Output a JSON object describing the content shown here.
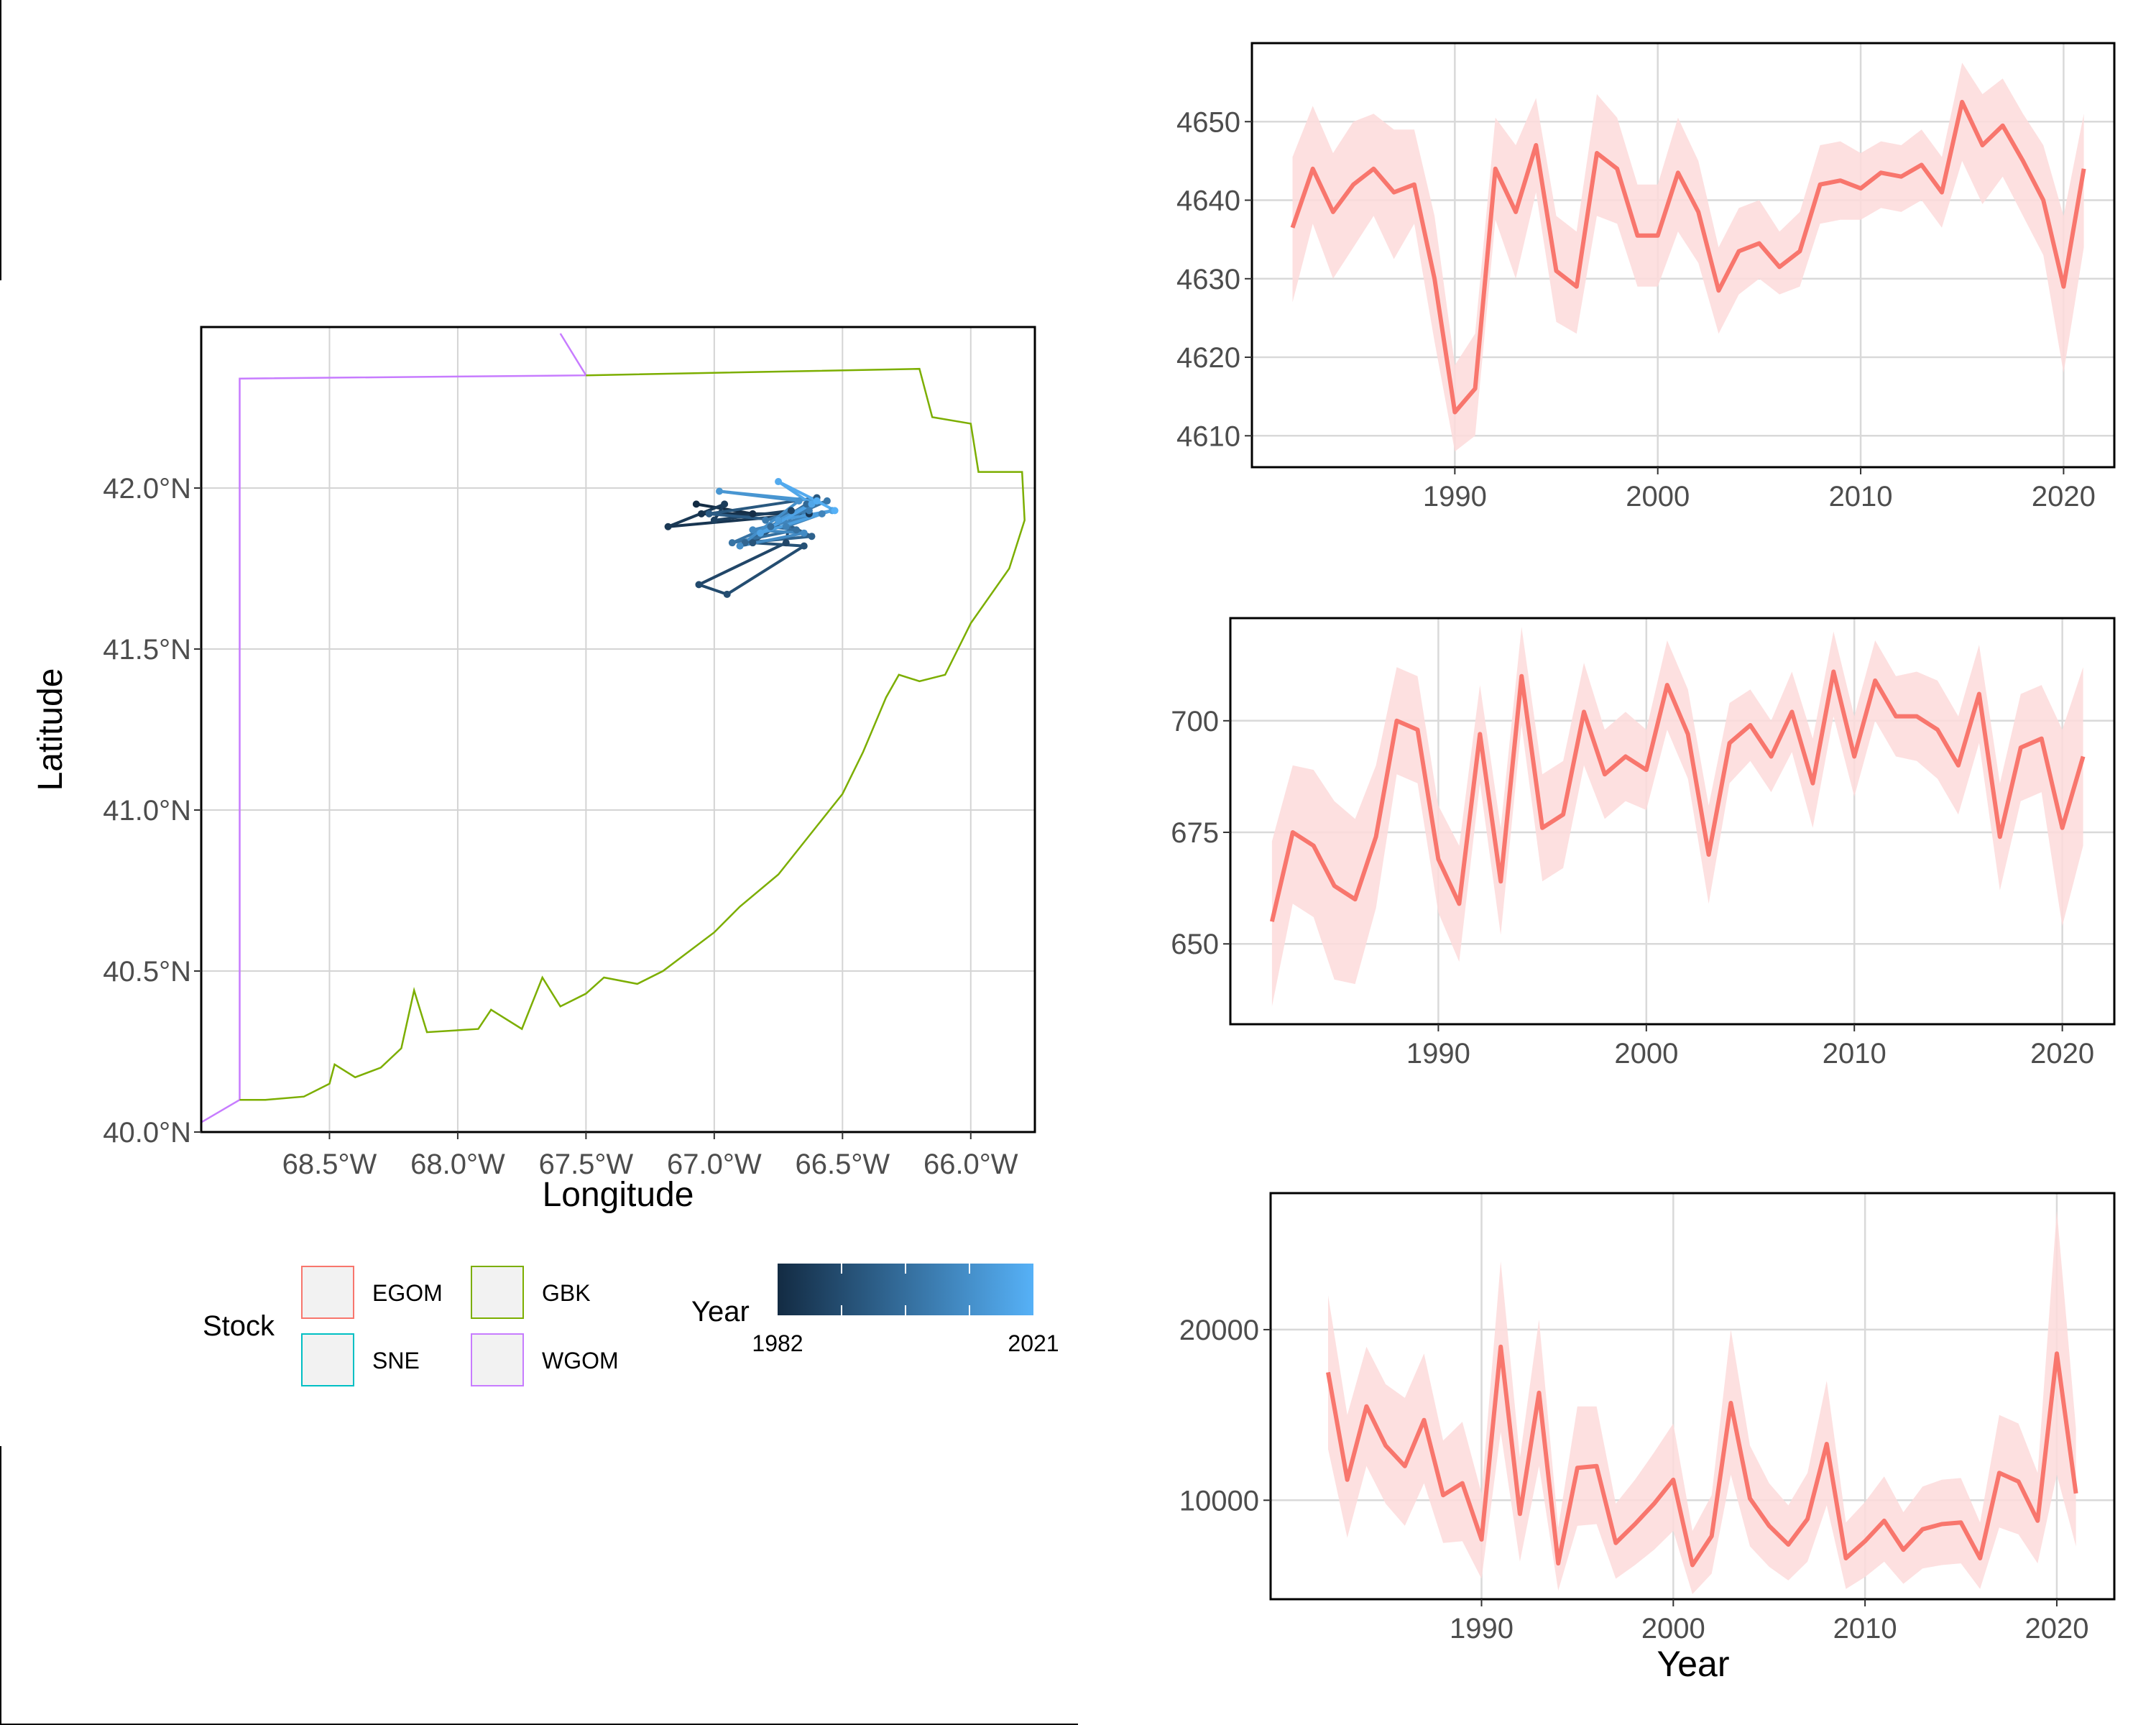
{
  "chart_data": [
    {
      "type": "map",
      "xlabel": "Longitude",
      "ylabel": "Latitude",
      "xlim": [
        -69.0,
        -65.75
      ],
      "ylim": [
        40.0,
        42.5
      ],
      "x_ticks": [
        {
          "value": -68.5,
          "label": "68.5°W"
        },
        {
          "value": -68.0,
          "label": "68.0°W"
        },
        {
          "value": -67.5,
          "label": "67.5°W"
        },
        {
          "value": -67.0,
          "label": "67.0°W"
        },
        {
          "value": -66.5,
          "label": "66.5°W"
        },
        {
          "value": -66.0,
          "label": "66.0°W"
        }
      ],
      "y_ticks": [
        {
          "value": 40.0,
          "label": "40.0°N"
        },
        {
          "value": 40.5,
          "label": "40.5°N"
        },
        {
          "value": 41.0,
          "label": "41.0°N"
        },
        {
          "value": 41.5,
          "label": "41.5°N"
        },
        {
          "value": 42.0,
          "label": "42.0°N"
        }
      ],
      "grid": true,
      "stock_legend": {
        "title": "Stock",
        "items": [
          {
            "label": "EGOM",
            "color": "#F8766D"
          },
          {
            "label": "GBK",
            "color": "#7CAE00"
          },
          {
            "label": "SNE",
            "color": "#00BFC4"
          },
          {
            "label": "WGOM",
            "color": "#C77CFF"
          }
        ]
      },
      "year_legend": {
        "title": "Year",
        "min_label": "1982",
        "max_label": "2021",
        "color_low": "#132B43",
        "color_high": "#56B1F7"
      },
      "stock_boundaries": [
        {
          "name": "WGOM",
          "color": "#C77CFF",
          "points": [
            [
              -69.0,
              40.03
            ],
            [
              -68.85,
              40.1
            ],
            [
              -68.85,
              42.34
            ],
            [
              -67.5,
              42.35
            ],
            [
              -67.6,
              42.48
            ]
          ]
        },
        {
          "name": "GBK",
          "color": "#7CAE00",
          "points": [
            [
              -68.85,
              40.1
            ],
            [
              -68.75,
              40.1
            ],
            [
              -68.6,
              40.11
            ],
            [
              -68.5,
              40.15
            ],
            [
              -68.48,
              40.21
            ],
            [
              -68.4,
              40.17
            ],
            [
              -68.3,
              40.2
            ],
            [
              -68.22,
              40.26
            ],
            [
              -68.17,
              40.44
            ],
            [
              -68.12,
              40.31
            ],
            [
              -67.92,
              40.32
            ],
            [
              -67.87,
              40.38
            ],
            [
              -67.75,
              40.32
            ],
            [
              -67.67,
              40.48
            ],
            [
              -67.6,
              40.39
            ],
            [
              -67.5,
              40.43
            ],
            [
              -67.43,
              40.48
            ],
            [
              -67.3,
              40.46
            ],
            [
              -67.2,
              40.5
            ],
            [
              -67.0,
              40.62
            ],
            [
              -66.9,
              40.7
            ],
            [
              -66.75,
              40.8
            ],
            [
              -66.6,
              40.95
            ],
            [
              -66.5,
              41.05
            ],
            [
              -66.42,
              41.18
            ],
            [
              -66.33,
              41.35
            ],
            [
              -66.28,
              41.42
            ],
            [
              -66.2,
              41.4
            ],
            [
              -66.1,
              41.42
            ],
            [
              -66.0,
              41.58
            ],
            [
              -65.85,
              41.75
            ],
            [
              -65.79,
              41.9
            ],
            [
              -65.8,
              42.05
            ],
            [
              -65.97,
              42.05
            ],
            [
              -66.0,
              42.2
            ],
            [
              -66.15,
              42.22
            ],
            [
              -66.2,
              42.37
            ],
            [
              -67.5,
              42.35
            ]
          ]
        }
      ],
      "track_points": [
        {
          "year": 1982,
          "lon": -67.07,
          "lat": 41.95
        },
        {
          "year": 1983,
          "lon": -66.85,
          "lat": 41.92
        },
        {
          "year": 1984,
          "lon": -67.05,
          "lat": 41.92
        },
        {
          "year": 1985,
          "lon": -66.63,
          "lat": 41.92
        },
        {
          "year": 1986,
          "lon": -67.18,
          "lat": 41.88
        },
        {
          "year": 1987,
          "lon": -66.96,
          "lat": 41.95
        },
        {
          "year": 1988,
          "lon": -67.0,
          "lat": 41.9
        },
        {
          "year": 1989,
          "lon": -66.7,
          "lat": 41.93
        },
        {
          "year": 1990,
          "lon": -66.72,
          "lat": 41.83
        },
        {
          "year": 1991,
          "lon": -67.06,
          "lat": 41.7
        },
        {
          "year": 1992,
          "lon": -66.95,
          "lat": 41.67
        },
        {
          "year": 1993,
          "lon": -66.65,
          "lat": 41.82
        },
        {
          "year": 1994,
          "lon": -66.85,
          "lat": 41.83
        },
        {
          "year": 1995,
          "lon": -66.6,
          "lat": 41.97
        },
        {
          "year": 1996,
          "lon": -67.02,
          "lat": 41.92
        },
        {
          "year": 1997,
          "lon": -66.75,
          "lat": 41.9
        },
        {
          "year": 1998,
          "lon": -66.62,
          "lat": 41.85
        },
        {
          "year": 1999,
          "lon": -66.88,
          "lat": 41.83
        },
        {
          "year": 2000,
          "lon": -66.64,
          "lat": 41.95
        },
        {
          "year": 2001,
          "lon": -66.78,
          "lat": 41.88
        },
        {
          "year": 2002,
          "lon": -66.68,
          "lat": 41.87
        },
        {
          "year": 2003,
          "lon": -66.93,
          "lat": 41.83
        },
        {
          "year": 2004,
          "lon": -66.56,
          "lat": 41.96
        },
        {
          "year": 2005,
          "lon": -66.8,
          "lat": 41.9
        },
        {
          "year": 2006,
          "lon": -66.63,
          "lat": 41.93
        },
        {
          "year": 2007,
          "lon": -66.72,
          "lat": 41.88
        },
        {
          "year": 2008,
          "lon": -66.58,
          "lat": 41.92
        },
        {
          "year": 2009,
          "lon": -66.85,
          "lat": 41.87
        },
        {
          "year": 2010,
          "lon": -66.65,
          "lat": 41.86
        },
        {
          "year": 2011,
          "lon": -66.9,
          "lat": 41.82
        },
        {
          "year": 2012,
          "lon": -66.67,
          "lat": 41.96
        },
        {
          "year": 2013,
          "lon": -66.98,
          "lat": 41.99
        },
        {
          "year": 2014,
          "lon": -66.6,
          "lat": 41.96
        },
        {
          "year": 2015,
          "lon": -66.75,
          "lat": 41.9
        },
        {
          "year": 2016,
          "lon": -66.54,
          "lat": 41.93
        },
        {
          "year": 2017,
          "lon": -66.82,
          "lat": 41.86
        },
        {
          "year": 2018,
          "lon": -66.62,
          "lat": 41.95
        },
        {
          "year": 2019,
          "lon": -66.75,
          "lat": 42.02
        },
        {
          "year": 2020,
          "lon": -66.6,
          "lat": 41.96
        },
        {
          "year": 2021,
          "lon": -66.53,
          "lat": 41.93
        }
      ]
    },
    {
      "type": "line",
      "xlabel": "",
      "ylabel": "",
      "xlim": [
        1980.0,
        2022.5
      ],
      "ylim": [
        4606.0,
        4660.0
      ],
      "x_ticks": [
        1990,
        2000,
        2010,
        2020
      ],
      "y_ticks": [
        4610,
        4620,
        4630,
        4640,
        4650
      ],
      "grid": true,
      "line_color": "#F8766D",
      "ribbon_color": "#FDDADA",
      "x": [
        1982,
        1983,
        1984,
        1985,
        1986,
        1987,
        1988,
        1989,
        1990,
        1991,
        1992,
        1993,
        1994,
        1995,
        1996,
        1997,
        1998,
        1999,
        2000,
        2001,
        2002,
        2003,
        2004,
        2005,
        2006,
        2007,
        2008,
        2009,
        2010,
        2011,
        2012,
        2013,
        2014,
        2015,
        2016,
        2017,
        2018,
        2019,
        2020,
        2021
      ],
      "y": [
        4636.5,
        4644.0,
        4638.5,
        4642.0,
        4644.0,
        4641.0,
        4642.0,
        4630.0,
        4613.0,
        4616.0,
        4644.0,
        4638.5,
        4647.0,
        4631.0,
        4629.0,
        4646.0,
        4644.0,
        4635.5,
        4635.5,
        4643.5,
        4638.5,
        4628.5,
        4633.5,
        4634.5,
        4631.5,
        4633.5,
        4642.0,
        4642.5,
        4641.5,
        4643.5,
        4643.0,
        4644.5,
        4641.0,
        4652.5,
        4647.0,
        4649.5,
        4645.0,
        4640.0,
        4629.0,
        4644.0
      ],
      "lower": [
        4627.0,
        4637.0,
        4630.0,
        4634.0,
        4638.0,
        4632.5,
        4637.0,
        4622.0,
        4608.0,
        4610.0,
        4637.5,
        4630.0,
        4641.0,
        4624.5,
        4623.0,
        4638.0,
        4637.0,
        4629.0,
        4629.0,
        4636.0,
        4632.0,
        4623.0,
        4628.0,
        4630.0,
        4628.0,
        4629.0,
        4637.0,
        4637.5,
        4637.5,
        4639.0,
        4638.5,
        4640.0,
        4636.5,
        4645.0,
        4639.5,
        4643.0,
        4638.0,
        4633.0,
        4618.0,
        4634.0
      ],
      "upper": [
        4645.5,
        4652.0,
        4646.0,
        4650.0,
        4651.0,
        4649.0,
        4649.0,
        4638.0,
        4619.0,
        4623.0,
        4650.5,
        4647.0,
        4653.0,
        4638.0,
        4636.0,
        4653.5,
        4650.5,
        4642.0,
        4642.0,
        4650.5,
        4645.0,
        4634.0,
        4639.0,
        4640.0,
        4636.0,
        4638.5,
        4647.0,
        4647.5,
        4646.0,
        4647.5,
        4647.0,
        4649.0,
        4645.5,
        4657.5,
        4653.5,
        4655.5,
        4651.0,
        4647.0,
        4638.0,
        4651.0
      ]
    },
    {
      "type": "line",
      "xlabel": "",
      "ylabel": "",
      "xlim": [
        1980.0,
        2022.5
      ],
      "ylim": [
        632.0,
        723.0
      ],
      "x_ticks": [
        1990,
        2000,
        2010,
        2020
      ],
      "y_ticks": [
        650,
        675,
        700
      ],
      "grid": true,
      "line_color": "#F8766D",
      "ribbon_color": "#FDDADA",
      "x": [
        1982,
        1983,
        1984,
        1985,
        1986,
        1987,
        1988,
        1989,
        1990,
        1991,
        1992,
        1993,
        1994,
        1995,
        1996,
        1997,
        1998,
        1999,
        2000,
        2001,
        2002,
        2003,
        2004,
        2005,
        2006,
        2007,
        2008,
        2009,
        2010,
        2011,
        2012,
        2013,
        2014,
        2015,
        2016,
        2017,
        2018,
        2019,
        2020,
        2021
      ],
      "y": [
        655.0,
        675.0,
        672.0,
        663.0,
        660.0,
        674.0,
        700.0,
        698.0,
        669.0,
        659.0,
        697.0,
        664.0,
        710.0,
        676.0,
        679.0,
        702.0,
        688.0,
        692.0,
        689.0,
        708.0,
        697.0,
        670.0,
        695.0,
        699.0,
        692.0,
        702.0,
        686.0,
        711.0,
        692.0,
        709.0,
        701.0,
        701.0,
        698.0,
        690.0,
        706.0,
        674.0,
        694.0,
        696.0,
        676.0,
        692.0
      ],
      "lower": [
        636.0,
        659.0,
        656.0,
        642.0,
        641.0,
        658.0,
        688.0,
        686.0,
        657.0,
        646.0,
        686.0,
        652.0,
        699.0,
        664.0,
        667.0,
        690.0,
        678.0,
        682.0,
        680.0,
        698.0,
        687.0,
        659.0,
        686.0,
        691.0,
        684.0,
        693.0,
        676.0,
        701.0,
        683.0,
        700.0,
        692.0,
        691.0,
        687.0,
        679.0,
        695.0,
        662.0,
        682.0,
        684.0,
        654.0,
        672.0
      ],
      "upper": [
        673.0,
        690.0,
        689.0,
        682.0,
        678.0,
        690.0,
        712.0,
        710.0,
        681.0,
        672.0,
        708.0,
        676.0,
        721.0,
        688.0,
        691.0,
        713.0,
        698.0,
        702.0,
        698.0,
        718.0,
        707.0,
        681.0,
        704.0,
        707.0,
        700.0,
        711.0,
        696.0,
        720.0,
        701.0,
        718.0,
        710.0,
        711.0,
        709.0,
        701.0,
        717.0,
        686.0,
        706.0,
        708.0,
        698.0,
        712.0
      ]
    },
    {
      "type": "line",
      "xlabel": "Year",
      "ylabel": "",
      "xlim": [
        1979.0,
        2023.0
      ],
      "ylim": [
        4200.0,
        28000.0
      ],
      "x_ticks": [
        1990,
        2000,
        2010,
        2020
      ],
      "y_ticks": [
        10000,
        20000
      ],
      "grid": true,
      "line_color": "#F8766D",
      "ribbon_color": "#FDDADA",
      "x": [
        1982,
        1983,
        1984,
        1985,
        1986,
        1987,
        1988,
        1989,
        1990,
        1991,
        1992,
        1993,
        1994,
        1995,
        1996,
        1997,
        1998,
        1999,
        2000,
        2001,
        2002,
        2003,
        2004,
        2005,
        2006,
        2007,
        2008,
        2009,
        2010,
        2011,
        2012,
        2013,
        2014,
        2015,
        2016,
        2017,
        2018,
        2019,
        2020,
        2021
      ],
      "y": [
        17500,
        11200,
        15500,
        13200,
        12000,
        14700,
        10300,
        11000,
        7700,
        19000,
        9200,
        16300,
        6300,
        11900,
        12000,
        7500,
        8600,
        9800,
        11200,
        6200,
        7900,
        15700,
        10100,
        8500,
        7400,
        8900,
        13300,
        6600,
        7600,
        8800,
        7100,
        8300,
        8600,
        8700,
        6600,
        11600,
        11100,
        8800,
        18600,
        10400
      ],
      "lower": [
        13000,
        7800,
        12000,
        9800,
        8500,
        11000,
        7500,
        7600,
        5400,
        14000,
        6400,
        12000,
        4700,
        8500,
        8600,
        5400,
        6200,
        7100,
        8200,
        4500,
        5700,
        11500,
        7300,
        6100,
        5300,
        6400,
        9700,
        4800,
        5500,
        6400,
        5100,
        6000,
        6200,
        6300,
        4800,
        8400,
        8000,
        6300,
        11500,
        7300
      ],
      "upper": [
        22000,
        15000,
        19000,
        16800,
        16000,
        18600,
        13500,
        14600,
        10400,
        24000,
        12500,
        20600,
        8400,
        15500,
        15500,
        9800,
        11200,
        12800,
        14500,
        8200,
        10300,
        20000,
        13200,
        11000,
        9700,
        11600,
        17000,
        8700,
        9900,
        11400,
        9300,
        10800,
        11200,
        11300,
        8700,
        15000,
        14500,
        11600,
        27000,
        14200
      ]
    }
  ]
}
